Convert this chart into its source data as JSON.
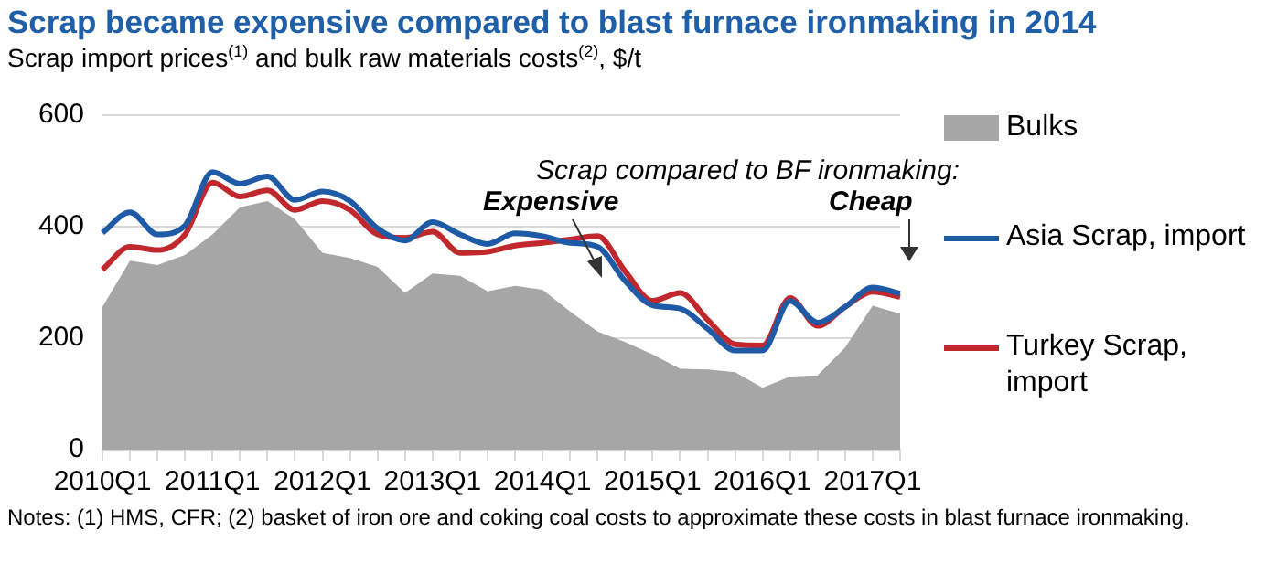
{
  "chart_data": {
    "type": "line",
    "title": "Scrap became expensive compared to blast furnace ironmaking in 2014",
    "subtitle": "Scrap import prices$^{(1)}$ and bulk raw materials costs$^{(2)}$, $/t",
    "categories": [
      "2010Q1",
      null,
      null,
      null,
      "2011Q1",
      null,
      null,
      null,
      "2012Q1",
      null,
      null,
      null,
      "2013Q1",
      null,
      null,
      null,
      "2014Q1",
      null,
      null,
      null,
      "2015Q1",
      null,
      null,
      null,
      "2016Q1",
      null,
      null,
      null,
      "2017Q1",
      null
    ],
    "series": [
      {
        "name": "Bulks",
        "type": "area",
        "color": "#a6a6a6",
        "values": [
          256,
          339,
          331,
          349,
          386,
          435,
          446,
          413,
          353,
          344,
          328,
          281,
          316,
          312,
          284,
          294,
          287,
          248,
          212,
          193,
          171,
          145,
          144,
          139,
          111,
          131,
          133,
          183,
          258,
          244
        ]
      },
      {
        "name": "Asia Scrap, import",
        "color": "#1f5aa6",
        "values": [
          389,
          426,
          386,
          402,
          498,
          477,
          490,
          448,
          463,
          446,
          397,
          375,
          408,
          386,
          369,
          388,
          383,
          371,
          364,
          303,
          259,
          253,
          217,
          178,
          178,
          267,
          228,
          256,
          291,
          280
        ]
      },
      {
        "name": "Turkey Scrap, import",
        "color": "#c0282d",
        "values": [
          323,
          364,
          358,
          386,
          479,
          454,
          465,
          430,
          446,
          430,
          386,
          380,
          391,
          353,
          355,
          366,
          371,
          377,
          383,
          320,
          267,
          281,
          233,
          189,
          187,
          272,
          222,
          256,
          283,
          274
        ]
      }
    ],
    "ylim": [
      0,
      600
    ],
    "yticks": [
      0,
      200,
      400,
      600
    ],
    "grid": "y",
    "legend": "right",
    "marker": "none",
    "line_style": "solid",
    "annotations": [
      "Scrap compared to BF ironmaking:",
      "Expensive",
      "Cheap",
      "Notes: (1) HMS, CFR; (2) basket of iron ore and coking coal costs to approximate these costs in blast furnace ironmaking."
    ]
  }
}
